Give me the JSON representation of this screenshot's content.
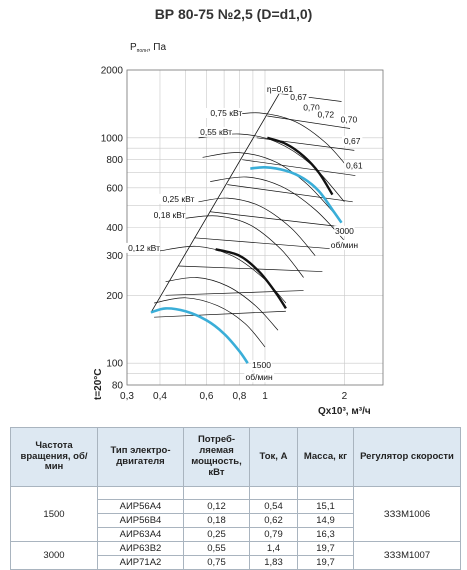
{
  "title": "ВР 80-75 №2,5 (D=d1,0)",
  "chart_data": {
    "type": "line",
    "xlabel": "Qx10³, м³/ч",
    "ylabel_main": "P",
    "ylabel_sub": "полн",
    "ylabel_unit": ", Па",
    "temp_label": "t=20°C",
    "x_scale": "log",
    "y_scale": "log",
    "xlim": [
      0.3,
      2.8
    ],
    "ylim": [
      80,
      2000
    ],
    "x_ticks": [
      0.3,
      0.4,
      0.6,
      0.8,
      1,
      2
    ],
    "x_tick_labels": [
      "0,3",
      "0,4",
      "0,6",
      "0,8",
      "1",
      "2"
    ],
    "y_ticks": [
      80,
      100,
      200,
      300,
      400,
      600,
      800,
      1000,
      2000
    ],
    "y_tick_labels": [
      "80",
      "100",
      "200",
      "300",
      "400",
      "600",
      "800",
      "1000",
      "2000"
    ],
    "series": [
      {
        "name": "3000 об/мин",
        "color": "#3aaed8",
        "x": [
          0.88,
          1.0,
          1.2,
          1.4,
          1.6,
          1.8,
          1.95
        ],
        "y": [
          730,
          740,
          715,
          660,
          580,
          480,
          420
        ]
      },
      {
        "name": "1500 об/мин",
        "color": "#3aaed8",
        "x": [
          0.37,
          0.42,
          0.5,
          0.6,
          0.7,
          0.8,
          0.86
        ],
        "y": [
          168,
          175,
          170,
          155,
          135,
          113,
          100
        ]
      }
    ],
    "operating_curves": [
      {
        "x": [
          1.02,
          1.2,
          1.4,
          1.6,
          1.8
        ],
        "y": [
          1000,
          940,
          830,
          700,
          560
        ]
      },
      {
        "x": [
          0.65,
          0.8,
          0.95,
          1.1,
          1.2
        ],
        "y": [
          320,
          300,
          255,
          205,
          175
        ]
      }
    ],
    "power_labels": [
      {
        "label": "0,75 кВт",
        "x": 0.82,
        "y": 1250
      },
      {
        "label": "0,55 кВт",
        "x": 0.75,
        "y": 1030
      },
      {
        "label": "0,25 кВт",
        "x": 0.54,
        "y": 520
      },
      {
        "label": "0,18 кВт",
        "x": 0.5,
        "y": 440
      },
      {
        "label": "0,12 кВт",
        "x": 0.4,
        "y": 315
      }
    ],
    "efficiency_labels": [
      {
        "label": "η=0,61",
        "x": 1.14,
        "y": 1600
      },
      {
        "label": "0,67",
        "x": 1.34,
        "y": 1470
      },
      {
        "label": "0,70",
        "x": 1.5,
        "y": 1320
      },
      {
        "label": "0,72",
        "x": 1.7,
        "y": 1230
      },
      {
        "label": "0,70",
        "x": 2.08,
        "y": 1170
      },
      {
        "label": "0,67",
        "x": 2.14,
        "y": 940
      },
      {
        "label": "0,61",
        "x": 2.18,
        "y": 730
      }
    ],
    "speed_labels": [
      {
        "label": "3000",
        "x": 2.0,
        "y": 375
      },
      {
        "label": "об/мин",
        "x": 2.0,
        "y": 325
      },
      {
        "label": "1500",
        "x": 0.97,
        "y": 95
      },
      {
        "label": "об/мин",
        "x": 0.95,
        "y": 84
      }
    ]
  },
  "table": {
    "headers": [
      "Частота вращения, об/мин",
      "Тип электро-двигателя",
      "Потреб-ляемая мощность, кВт",
      "Ток, А",
      "Масса, кг",
      "Регулятор скорости"
    ],
    "groups": [
      {
        "speed": "1500",
        "regulator": "ЗЗЗМ1006",
        "rows": [
          {
            "motor": "АИР56А4",
            "power": "0,12",
            "current": "0,54",
            "mass": "15,1"
          },
          {
            "motor": "АИР56В4",
            "power": "0,18",
            "current": "0,62",
            "mass": "14,9"
          },
          {
            "motor": "АИР63А4",
            "power": "0,25",
            "current": "0,79",
            "mass": "16,3"
          }
        ]
      },
      {
        "speed": "3000",
        "regulator": "ЗЗЗМ1007",
        "rows": [
          {
            "motor": "АИР63В2",
            "power": "0,55",
            "current": "1,4",
            "mass": "19,7"
          },
          {
            "motor": "АИР71А2",
            "power": "0,75",
            "current": "1,83",
            "mass": "19,7"
          }
        ]
      }
    ]
  }
}
